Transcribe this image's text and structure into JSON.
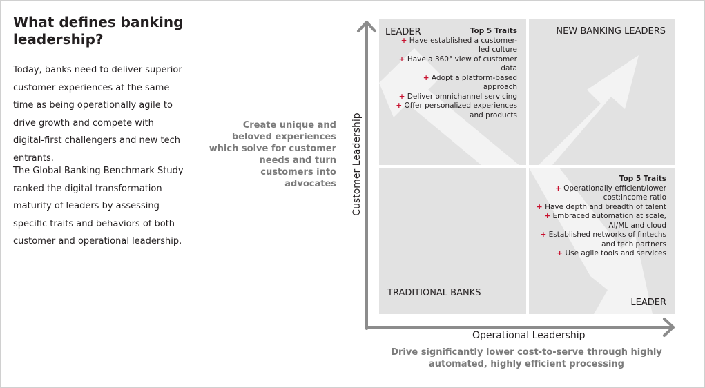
{
  "left_panel": {
    "title": "What defines banking leadership?",
    "paragraph1": "Today, banks need to deliver superior customer experiences at the same time as being operationally agile to drive growth and compete with digital-first challengers and new tech entrants.",
    "paragraph2": "The Global Banking Benchmark Study ranked the digital transformation maturity of leaders by assessing specific traits and behaviors of both customer and operational leadership."
  },
  "customer_statement": "Create unique and beloved experiences which solve for customer needs and turn customers into advocates",
  "operational_statement": "Drive significantly lower cost-to-serve through highly automated, highly efficient processing",
  "axes": {
    "y_label": "Customer Leadership",
    "x_label": "Operational Leadership"
  },
  "quadrants": {
    "top_left": {
      "label": "LEADER",
      "traits_title": "Top 5 Traits",
      "traits": [
        "Have established a customer-led culture",
        "Have a 360° view of customer data",
        "Adopt a platform-based approach",
        "Deliver omnichannel servicing",
        "Offer personalized experiences and products"
      ]
    },
    "top_right": {
      "label": "NEW BANKING LEADERS"
    },
    "bottom_left": {
      "label": "TRADITIONAL BANKS"
    },
    "bottom_right": {
      "label": "LEADER",
      "traits_title": "Top 5 Traits",
      "traits": [
        "Operationally efficient/lower cost:income ratio",
        "Have depth and breadth of talent",
        "Embraced automation at scale, AI/ML and cloud",
        "Established networks of fintechs and tech partners",
        "Use agile tools and services"
      ]
    }
  },
  "colors": {
    "quadrant_fill": "#e2e2e2",
    "arrow_fill": "#f3f3f3",
    "axis": "#8c8c8c",
    "accent_plus": "#c8102e",
    "statement_text": "#7b7b7b"
  }
}
